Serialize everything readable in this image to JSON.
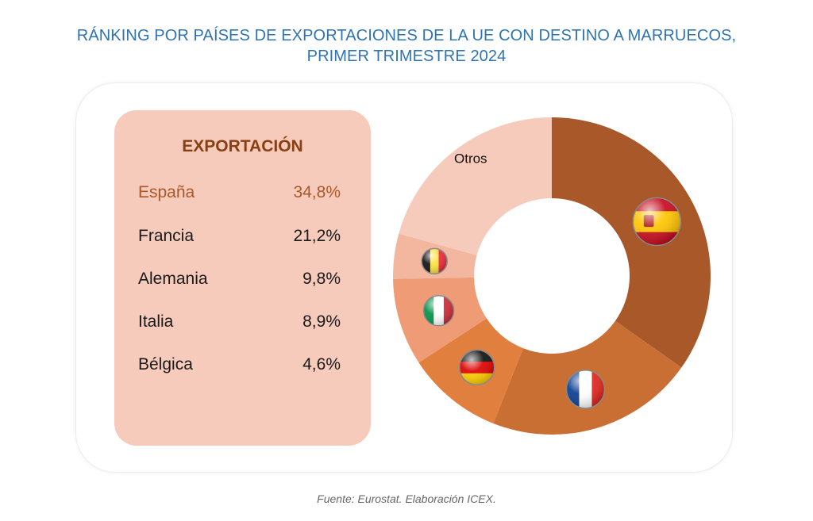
{
  "title": {
    "line1": "RÁNKING POR PAÍSES DE EXPORTACIONES DE LA UE CON DESTINO A MARRUECOS,",
    "line2": "PRIMER TRIMESTRE 2024"
  },
  "table": {
    "header": "EXPORTACIÓN",
    "rows": [
      {
        "name": "España",
        "value": "34,8%"
      },
      {
        "name": "Francia",
        "value": "21,2%"
      },
      {
        "name": "Alemania",
        "value": "9,8%"
      },
      {
        "name": "Italia",
        "value": "8,9%"
      },
      {
        "name": "Bélgica",
        "value": "4,6%"
      }
    ]
  },
  "chart_data": {
    "type": "pie",
    "donut": true,
    "categories": [
      "España",
      "Francia",
      "Alemania",
      "Italia",
      "Bélgica",
      "Otros"
    ],
    "values": [
      34.8,
      21.2,
      9.8,
      8.9,
      4.6,
      20.7
    ],
    "colors": [
      "#a9582a",
      "#c96f33",
      "#e17f3e",
      "#ee9b76",
      "#f3b69e",
      "#f6cbbc"
    ],
    "labels": [
      "",
      "",
      "",
      "",
      "",
      "Otros"
    ],
    "icons": [
      "spain-flag-icon",
      "france-flag-icon",
      "germany-flag-icon",
      "italy-flag-icon",
      "belgium-flag-icon",
      ""
    ],
    "legend": "none"
  },
  "footer": "Fuente: Eurostat. Elaboración ICEX."
}
